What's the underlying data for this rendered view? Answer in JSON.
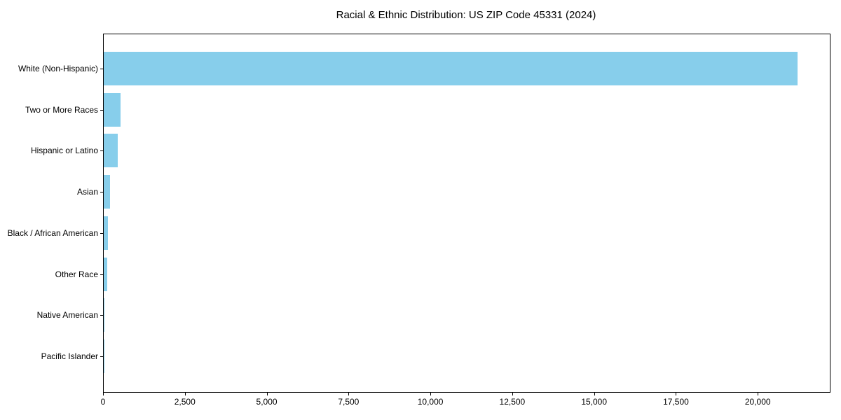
{
  "title": "Racial & Ethnic Distribution: US ZIP Code 45331 (2024)",
  "chart_data": {
    "type": "bar",
    "orientation": "horizontal",
    "title": "Racial & Ethnic Distribution: US ZIP Code 45331 (2024)",
    "categories": [
      "White (Non-Hispanic)",
      "Two or More Races",
      "Hispanic or Latino",
      "Asian",
      "Black / African American",
      "Other Race",
      "Native American",
      "Pacific Islander"
    ],
    "values": [
      21200,
      515,
      430,
      200,
      125,
      105,
      12,
      4
    ],
    "xlabel": "",
    "ylabel": "",
    "xlim": [
      0,
      22200
    ],
    "xticks": {
      "values": [
        0,
        2500,
        5000,
        7500,
        10000,
        12500,
        15000,
        17500,
        20000
      ],
      "labels": [
        "0",
        "2,500",
        "5,000",
        "7,500",
        "10,000",
        "12,500",
        "15,000",
        "17,500",
        "20,000"
      ]
    },
    "grid": false,
    "legend": null,
    "bar_color": "#87CEEB"
  },
  "colors": {
    "bar": "#87CEEB",
    "axis": "#000000",
    "text": "#000000",
    "background": "#ffffff"
  }
}
